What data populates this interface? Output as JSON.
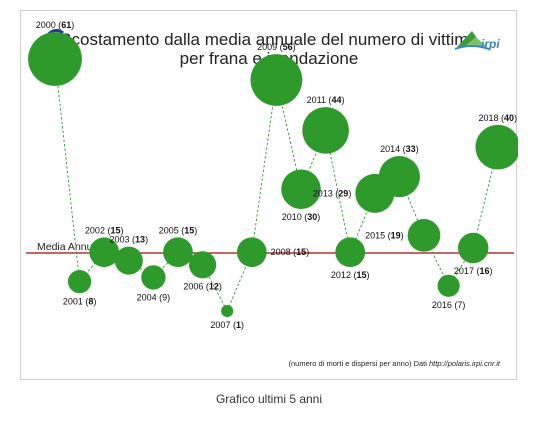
{
  "chart_data": {
    "type": "bubble",
    "title_line1": "Scostamento dalla media annuale del numero di vittime",
    "title_line2": "per frana e inondazione",
    "reference_line_label": "Media Annuale",
    "note_prefix": "(numero di morti e dispersi per anno) Dati ",
    "note_url": "http://polaris.irpi.cnr.it",
    "logo_text": "irpi",
    "colors": {
      "bubble": "#2f9a2c",
      "connector": "#2f9a2c",
      "reference_line": "#b4362c"
    },
    "points": [
      {
        "year": "2000",
        "value": 61,
        "value_label": "61",
        "position": "above"
      },
      {
        "year": "2001",
        "value": 8,
        "value_label": "8",
        "position": "below"
      },
      {
        "year": "2002",
        "value": 15,
        "value_label": "15",
        "position": "above"
      },
      {
        "year": "2003",
        "value": 13,
        "value_label": "13",
        "position": "above"
      },
      {
        "year": "2004",
        "value": 9,
        "value_label": "9",
        "position": "below",
        "plain": true
      },
      {
        "year": "2005",
        "value": 15,
        "value_label": "15",
        "position": "above"
      },
      {
        "year": "2006",
        "value": 12,
        "value_label": "12",
        "position": "below"
      },
      {
        "year": "2007",
        "value": 1,
        "value_label": "1",
        "position": "below"
      },
      {
        "year": "2008",
        "value": 15,
        "value_label": "15",
        "position": "right"
      },
      {
        "year": "2009",
        "value": 56,
        "value_label": "56",
        "position": "above"
      },
      {
        "year": "2010",
        "value": 30,
        "value_label": "30",
        "position": "below"
      },
      {
        "year": "2011",
        "value": 44,
        "value_label": "44",
        "position": "above"
      },
      {
        "year": "2012",
        "value": 15,
        "value_label": "15",
        "position": "below"
      },
      {
        "year": "2013",
        "value": 29,
        "value_label": "29",
        "position": "left"
      },
      {
        "year": "2014",
        "value": 33,
        "value_label": "33",
        "position": "above"
      },
      {
        "year": "2015",
        "value": 19,
        "value_label": "19",
        "position": "left"
      },
      {
        "year": "2016",
        "value": 7,
        "value_label": "7",
        "position": "below",
        "plain": true
      },
      {
        "year": "2017",
        "value": 16,
        "value_label": "16",
        "position": "below"
      },
      {
        "year": "2018",
        "value": 40,
        "value_label": "40",
        "position": "above"
      }
    ]
  },
  "caption": "Grafico ultimi 5 anni"
}
